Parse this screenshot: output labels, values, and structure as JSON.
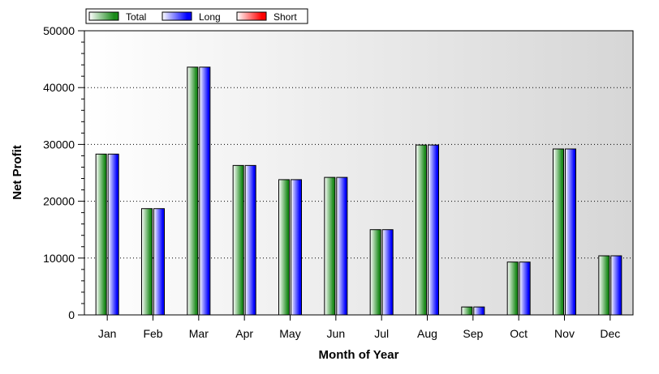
{
  "chart_data": {
    "type": "bar",
    "categories": [
      "Jan",
      "Feb",
      "Mar",
      "Apr",
      "May",
      "Jun",
      "Jul",
      "Aug",
      "Sep",
      "Oct",
      "Nov",
      "Dec"
    ],
    "series": [
      {
        "name": "Total",
        "color": "#1a8a1a",
        "values": [
          28300,
          18700,
          43600,
          26300,
          23800,
          24200,
          15000,
          29900,
          1400,
          9300,
          29200,
          10400
        ]
      },
      {
        "name": "Long",
        "color": "#0000ff",
        "values": [
          28300,
          18700,
          43600,
          26300,
          23800,
          24200,
          15000,
          29900,
          1400,
          9300,
          29200,
          10400
        ]
      },
      {
        "name": "Short",
        "color": "#ff0000",
        "values": [
          0,
          0,
          0,
          0,
          0,
          0,
          0,
          0,
          0,
          0,
          0,
          0
        ]
      }
    ],
    "xlabel": "Month of Year",
    "ylabel": "Net Profit",
    "ylim": [
      0,
      50000
    ],
    "yticks": [
      "0",
      "10000",
      "20000",
      "30000",
      "40000",
      "50000"
    ],
    "grid": "horizontal dotted",
    "legend": "top-left"
  }
}
